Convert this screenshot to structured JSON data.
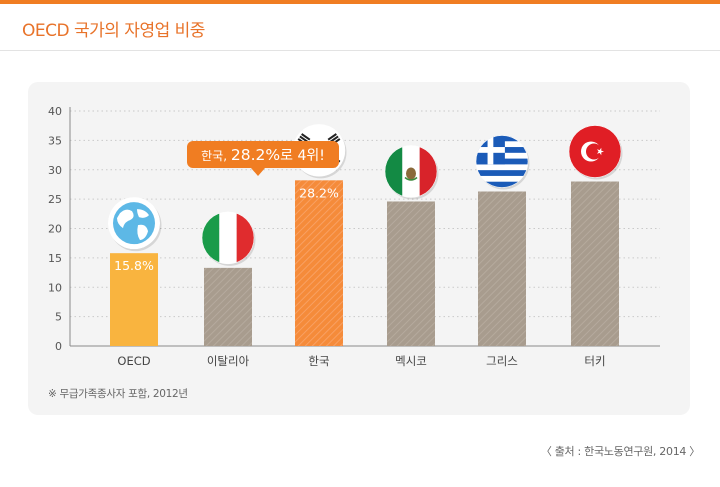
{
  "header": {
    "title": "OECD 국가의 자영업 비중"
  },
  "callout": {
    "prefix": "한국,",
    "highlight": "28.2%",
    "suffix": "로 4위!"
  },
  "footnote": "※ 무급가족종사자 포함, 2012년",
  "source": "〈 출처 : 한국노동연구원, 2014 〉",
  "colors": {
    "accent": "#f07d22",
    "highlight_bar": "#f58b3a",
    "oecd_bar": "#f9b43f",
    "other_bar": "#a89c8e",
    "callout_bg": "#f07d22"
  },
  "chart_data": {
    "type": "bar",
    "title": "OECD 국가의 자영업 비중",
    "categories": [
      "OECD",
      "이탈리아",
      "한국",
      "멕시코",
      "그리스",
      "터키"
    ],
    "values": [
      15.8,
      13.3,
      28.2,
      24.6,
      26.3,
      28.0
    ],
    "data_labels": [
      "15.8%",
      "",
      "28.2%",
      "",
      "",
      ""
    ],
    "icons": [
      "globe-icon",
      "italy-flag-icon",
      "korea-flag-icon",
      "mexico-flag-icon",
      "greece-flag-icon",
      "turkey-flag-icon"
    ],
    "ylim": [
      0,
      40
    ],
    "yticks": [
      0,
      5,
      10,
      15,
      20,
      25,
      30,
      35,
      40
    ],
    "grid": true,
    "xlabel": "",
    "ylabel": ""
  }
}
